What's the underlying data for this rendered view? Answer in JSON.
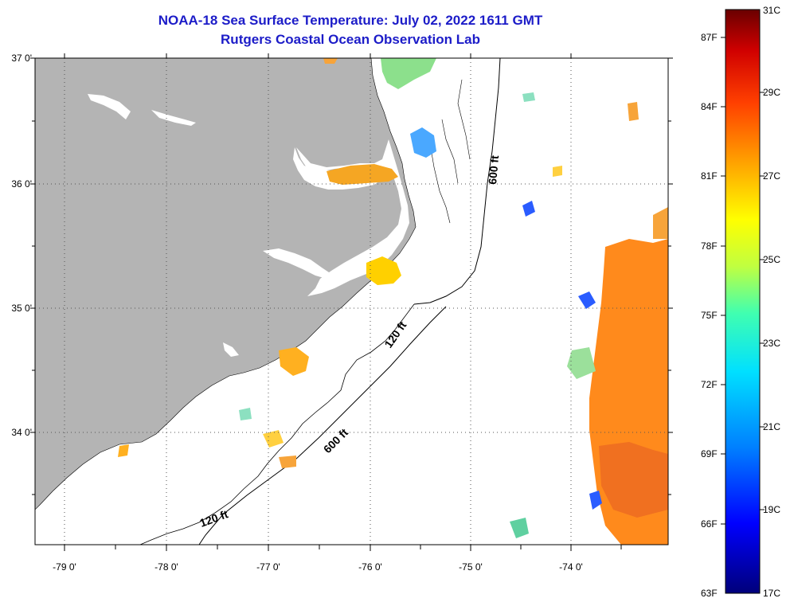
{
  "header": {
    "title": "NOAA-18 Sea Surface Temperature:  July 02, 2022 1611 GMT",
    "subtitle": "Rutgers Coastal Ocean Observation Lab"
  },
  "map": {
    "lat_labels": [
      "37 0'",
      "36 0'",
      "35 0'",
      "34 0'"
    ],
    "lon_labels": [
      "-79 0'",
      "-78 0'",
      "-77 0'",
      "-76 0'",
      "-75 0'",
      "-74 0'"
    ],
    "isobaths": [
      "600 ft",
      "120 ft",
      "600 ft",
      "120 ft"
    ],
    "colors": {
      "land": "#b4b4b4",
      "ocean": "#ffffff",
      "grid": "#555555"
    }
  },
  "colorbar": {
    "fahrenheit_labels": [
      "87F",
      "84F",
      "81F",
      "78F",
      "75F",
      "72F",
      "69F",
      "66F",
      "63F"
    ],
    "celsius_labels": [
      "31C",
      "29C",
      "27C",
      "25C",
      "23C",
      "21C",
      "19C",
      "17C"
    ],
    "range_c": [
      17,
      31
    ],
    "colors": [
      "#00007a",
      "#0000ff",
      "#0080ff",
      "#00e0ff",
      "#40ffb0",
      "#c0ff40",
      "#ffff00",
      "#ffa000",
      "#ff4000",
      "#d00000",
      "#6a0000"
    ]
  }
}
